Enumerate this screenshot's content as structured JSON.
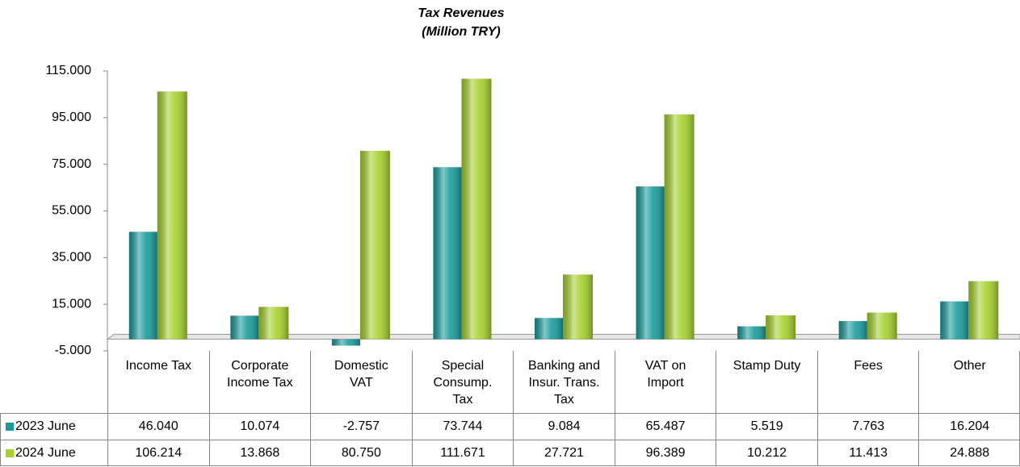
{
  "chart_data": {
    "type": "bar",
    "title": "Tax Revenues",
    "subtitle": "(Million TRY)",
    "categories": [
      "Income Tax",
      "Corporate Income Tax",
      "Domestic VAT",
      "Special Consump. Tax",
      "Banking and Insur. Trans. Tax",
      "VAT on Import",
      "Stamp Duty",
      "Fees",
      "Other"
    ],
    "series": [
      {
        "name": "2023 June",
        "color": "#1a9c9c",
        "values": [
          46040,
          10074,
          -2757,
          73744,
          9084,
          65487,
          5519,
          7763,
          16204
        ],
        "value_labels": [
          "46.040",
          "10.074",
          "-2.757",
          "73.744",
          "9.084",
          "65.487",
          "5.519",
          "7.763",
          "16.204"
        ]
      },
      {
        "name": "2024 June",
        "color": "#a6d12e",
        "values": [
          106214,
          13868,
          80750,
          111671,
          27721,
          96389,
          10212,
          11413,
          24888
        ],
        "value_labels": [
          "106.214",
          "13.868",
          "80.750",
          "111.671",
          "27.721",
          "96.389",
          "10.212",
          "11.413",
          "24.888"
        ]
      }
    ],
    "ylim": [
      -5000,
      115000
    ],
    "yticks": [
      {
        "value": -5000,
        "label": "-5.000"
      },
      {
        "value": 15000,
        "label": "15.000"
      },
      {
        "value": 35000,
        "label": "35.000"
      },
      {
        "value": 55000,
        "label": "55.000"
      },
      {
        "value": 75000,
        "label": "75.000"
      },
      {
        "value": 95000,
        "label": "95.000"
      },
      {
        "value": 115000,
        "label": "115.000"
      }
    ],
    "grid": false
  }
}
